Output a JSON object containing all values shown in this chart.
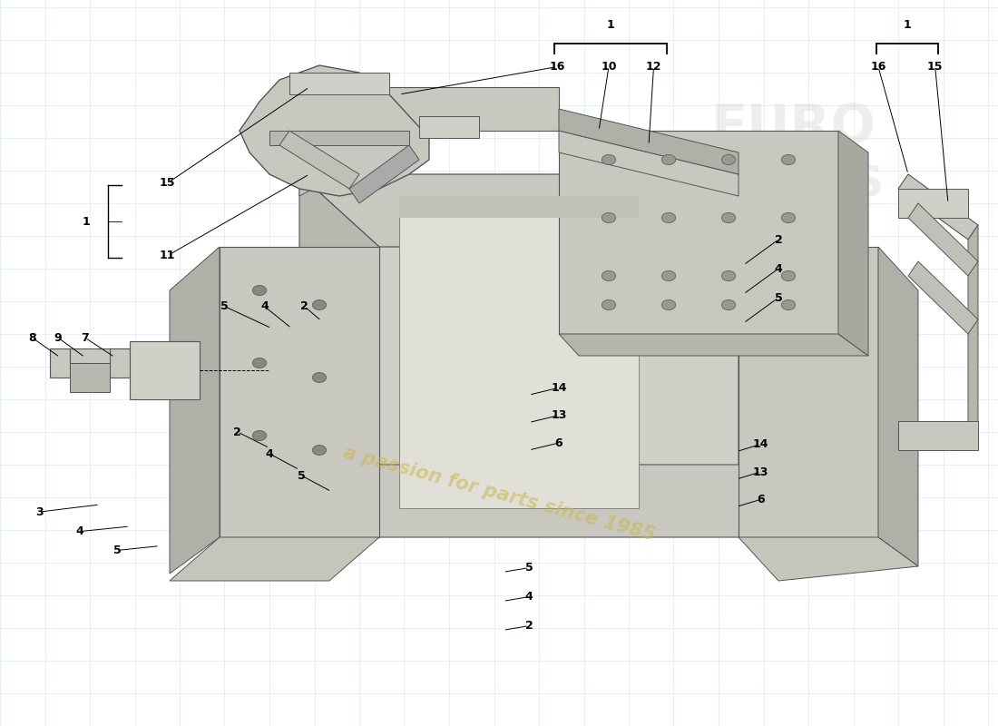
{
  "background_color": "#ffffff",
  "fig_width": 11.0,
  "fig_height": 8.0,
  "watermark_text": "a passion for parts since 1985",
  "watermark_color": "#c8b84a",
  "watermark_alpha": 0.55,
  "brand_color": "#cccccc",
  "brand_alpha": 0.32,
  "grid_color": "#c8dce8",
  "grid_alpha": 0.5,
  "part_color": "#c8c8c0",
  "line_color": "#000000",
  "label_fontsize": 9,
  "label_fontweight": "bold"
}
